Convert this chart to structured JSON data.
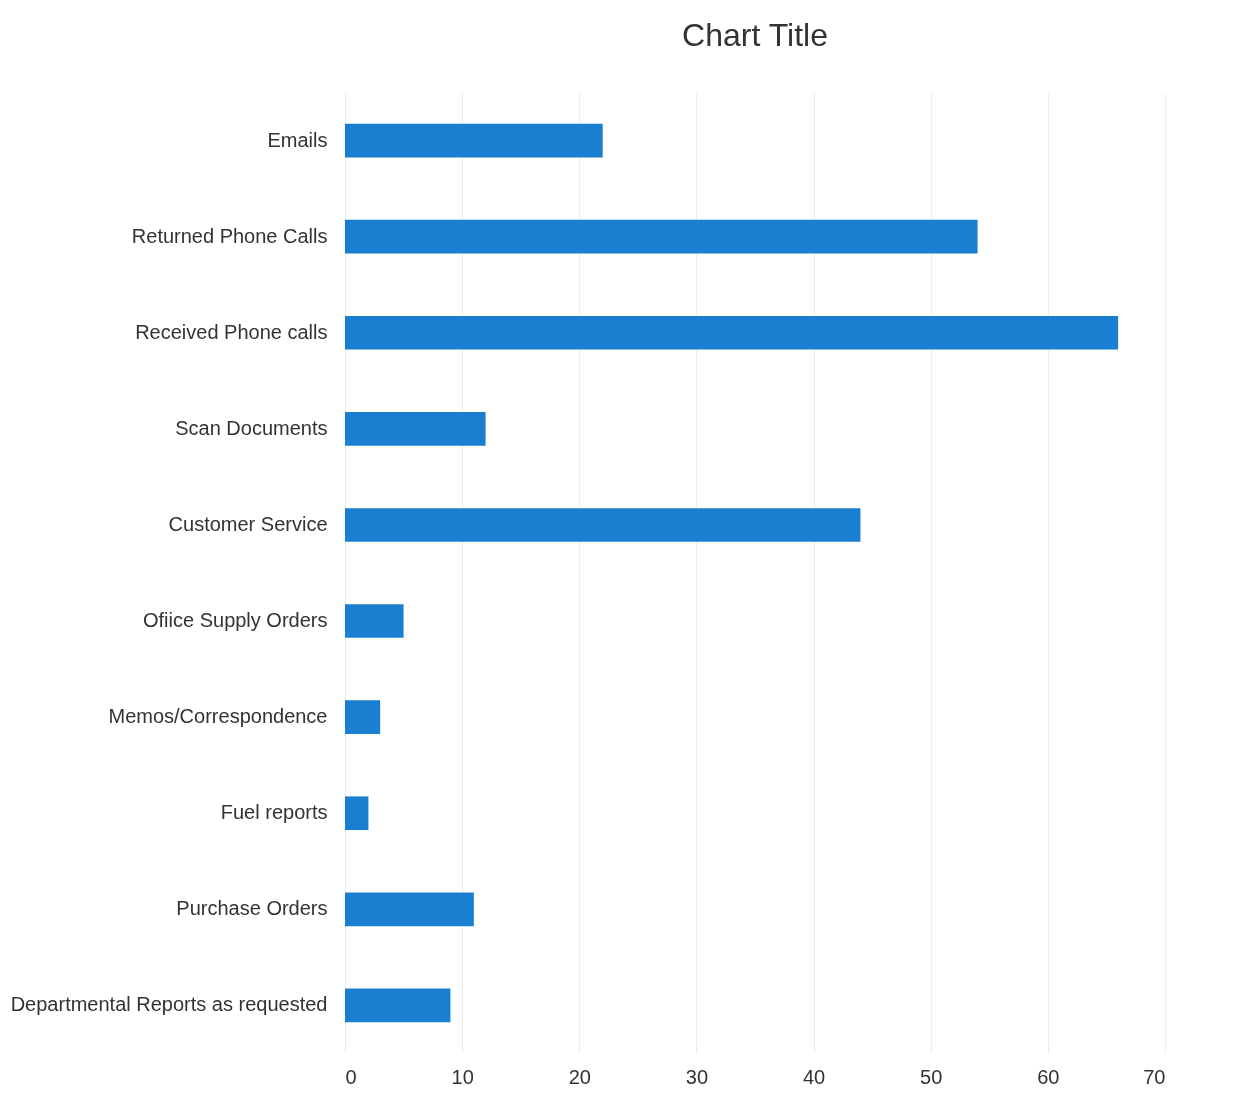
{
  "chart_data": {
    "type": "bar",
    "orientation": "horizontal",
    "title": "Chart Title",
    "categories": [
      "Emails",
      "Returned Phone Calls",
      "Received Phone calls",
      "Scan Documents",
      "Customer Service",
      "Ofiice Supply Orders",
      "Memos/Correspondence",
      "Fuel reports",
      "Purchase Orders",
      "Departmental Reports as requested"
    ],
    "values": [
      22,
      54,
      66,
      12,
      44,
      5,
      3,
      2,
      11,
      9
    ],
    "color": "#1b7fd1",
    "xlim": [
      0,
      70
    ],
    "xticks": [
      0,
      10,
      20,
      30,
      40,
      50,
      60,
      70
    ],
    "grid": "x"
  }
}
